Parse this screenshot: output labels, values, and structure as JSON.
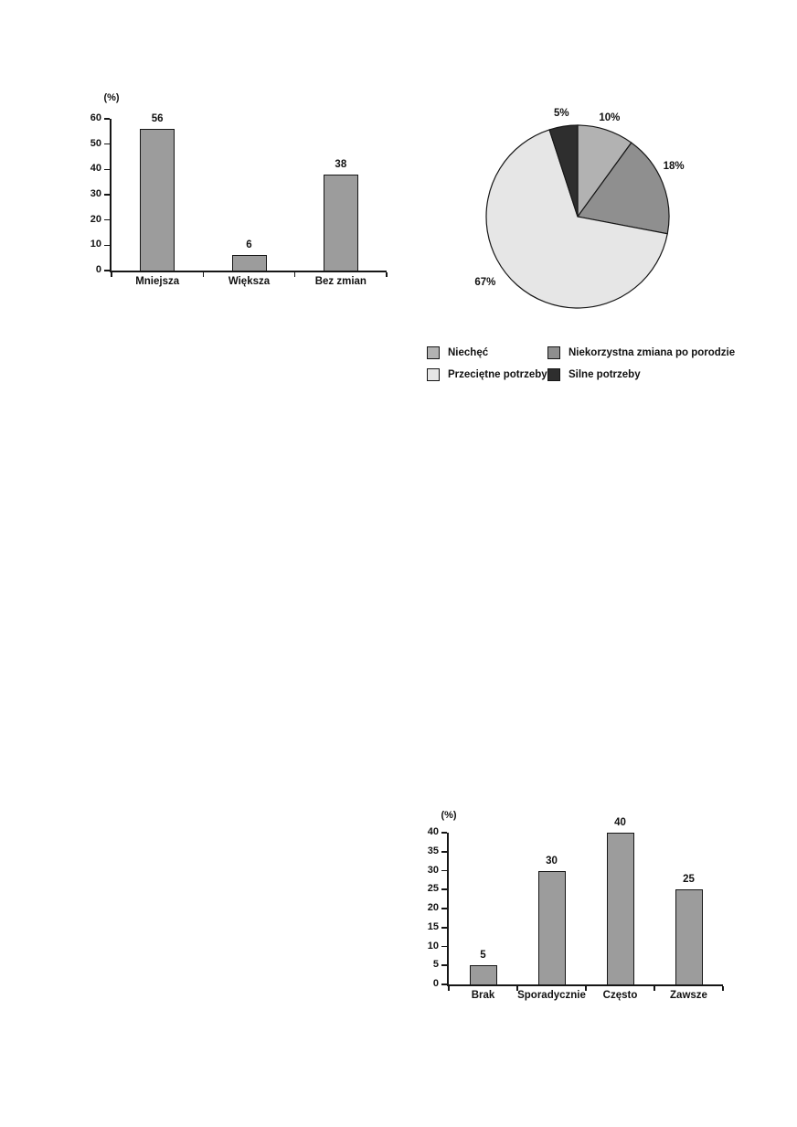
{
  "page": {
    "background": "#ffffff"
  },
  "chart_data": [
    {
      "type": "bar",
      "unit_label": "(%)",
      "categories": [
        "Mniejsza",
        "Większa",
        "Bez zmian"
      ],
      "values": [
        56,
        6,
        38
      ],
      "yticks": [
        0,
        10,
        20,
        30,
        40,
        50,
        60
      ],
      "ylim": [
        0,
        60
      ],
      "grid": false,
      "legend_position": "none",
      "bar_color": "#9c9c9c",
      "axis_color": "#161616"
    },
    {
      "type": "pie",
      "start_angle_deg": 0,
      "direction": "clockwise",
      "slices": [
        {
          "label": "Niechęć",
          "value_pct": 10,
          "data_label": "10%",
          "color": "#b2b2b2"
        },
        {
          "label": "Niekorzystna zmiana po porodzie",
          "value_pct": 18,
          "data_label": "18%",
          "color": "#8f8f8f"
        },
        {
          "label": "Przeciętne potrzeby",
          "value_pct": 67,
          "data_label": "67%",
          "color": "#e6e6e6"
        },
        {
          "label": "Silne potrzeby",
          "value_pct": 5,
          "data_label": "5%",
          "color": "#2e2e2e"
        }
      ],
      "legend_position": "below",
      "legend_columns": 2,
      "outline_color": "#161616"
    },
    {
      "type": "bar",
      "unit_label": "(%)",
      "categories": [
        "Brak",
        "Sporadycznie",
        "Często",
        "Zawsze"
      ],
      "values": [
        5,
        30,
        40,
        25
      ],
      "yticks": [
        0,
        5,
        10,
        15,
        20,
        25,
        30,
        35,
        40
      ],
      "ylim": [
        0,
        40
      ],
      "grid": false,
      "legend_position": "none",
      "bar_color": "#9c9c9c",
      "axis_color": "#161616"
    }
  ]
}
